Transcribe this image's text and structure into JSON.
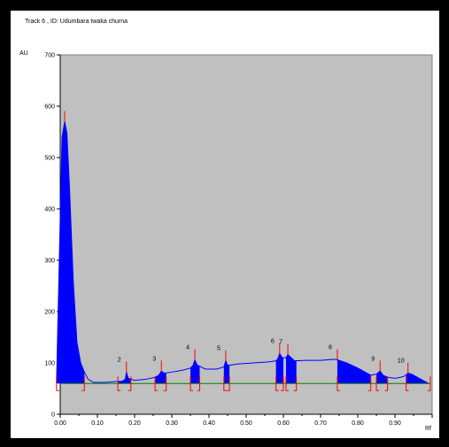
{
  "header": {
    "title": "Track  6 , ID: Udumbara twaka churna"
  },
  "chart_data": {
    "type": "area",
    "title": "Track  6 , ID: Udumbara twaka churna",
    "xlabel": "Rf",
    "ylabel": "AU",
    "xlim": [
      0.0,
      1.0
    ],
    "ylim": [
      0,
      700
    ],
    "x_ticks": [
      "0.00",
      "0.10",
      "0.20",
      "0.30",
      "0.40",
      "0.50",
      "0.60",
      "0.70",
      "0.80",
      "0.90"
    ],
    "y_ticks": [
      "0",
      "100",
      "200",
      "300",
      "400",
      "500",
      "600",
      "700"
    ],
    "background_color": "#c0c0c0",
    "signal_color": "#0000ff",
    "baseline_color": "#008000",
    "marker_color": "#ff0000",
    "baseline_au": 60,
    "signal": [
      [
        -0.01,
        60
      ],
      [
        0.0,
        380
      ],
      [
        0.005,
        540
      ],
      [
        0.012,
        570
      ],
      [
        0.018,
        548
      ],
      [
        0.025,
        440
      ],
      [
        0.035,
        260
      ],
      [
        0.045,
        140
      ],
      [
        0.055,
        100
      ],
      [
        0.065,
        82
      ],
      [
        0.075,
        68
      ],
      [
        0.09,
        62
      ],
      [
        0.12,
        62
      ],
      [
        0.155,
        64
      ],
      [
        0.165,
        64
      ],
      [
        0.175,
        68
      ],
      [
        0.178,
        82
      ],
      [
        0.183,
        70
      ],
      [
        0.2,
        66
      ],
      [
        0.23,
        68
      ],
      [
        0.255,
        72
      ],
      [
        0.265,
        76
      ],
      [
        0.272,
        84
      ],
      [
        0.28,
        80
      ],
      [
        0.3,
        82
      ],
      [
        0.33,
        86
      ],
      [
        0.35,
        90
      ],
      [
        0.357,
        95
      ],
      [
        0.362,
        106
      ],
      [
        0.368,
        96
      ],
      [
        0.39,
        88
      ],
      [
        0.42,
        88
      ],
      [
        0.44,
        92
      ],
      [
        0.445,
        104
      ],
      [
        0.45,
        95
      ],
      [
        0.48,
        98
      ],
      [
        0.52,
        100
      ],
      [
        0.56,
        102
      ],
      [
        0.58,
        104
      ],
      [
        0.585,
        108
      ],
      [
        0.59,
        118
      ],
      [
        0.597,
        110
      ],
      [
        0.607,
        110
      ],
      [
        0.612,
        116
      ],
      [
        0.618,
        112
      ],
      [
        0.63,
        104
      ],
      [
        0.66,
        105
      ],
      [
        0.7,
        105
      ],
      [
        0.735,
        107
      ],
      [
        0.745,
        106
      ],
      [
        0.77,
        100
      ],
      [
        0.8,
        90
      ],
      [
        0.82,
        82
      ],
      [
        0.835,
        76
      ],
      [
        0.85,
        78
      ],
      [
        0.86,
        84
      ],
      [
        0.868,
        76
      ],
      [
        0.88,
        72
      ],
      [
        0.9,
        70
      ],
      [
        0.915,
        72
      ],
      [
        0.925,
        74
      ],
      [
        0.935,
        80
      ],
      [
        0.945,
        78
      ],
      [
        0.96,
        72
      ],
      [
        0.975,
        66
      ],
      [
        0.99,
        60
      ]
    ],
    "peaks": [
      {
        "label": "",
        "start": -0.01,
        "end": 0.065,
        "max": 0.012
      },
      {
        "label": "2",
        "start": 0.155,
        "end": 0.19,
        "max": 0.178
      },
      {
        "label": "3",
        "start": 0.255,
        "end": 0.285,
        "max": 0.272
      },
      {
        "label": "4",
        "start": 0.35,
        "end": 0.375,
        "max": 0.362
      },
      {
        "label": "5",
        "start": 0.44,
        "end": 0.455,
        "max": 0.445
      },
      {
        "label": "6",
        "start": 0.58,
        "end": 0.6,
        "max": 0.59
      },
      {
        "label": "7",
        "start": 0.607,
        "end": 0.635,
        "max": 0.612
      },
      {
        "label": "8",
        "start": 0.745,
        "end": 0.835,
        "max": 0.745
      },
      {
        "label": "9",
        "start": 0.85,
        "end": 0.88,
        "max": 0.86
      },
      {
        "label": "10",
        "start": 0.93,
        "end": 0.995,
        "max": 0.935
      }
    ]
  }
}
